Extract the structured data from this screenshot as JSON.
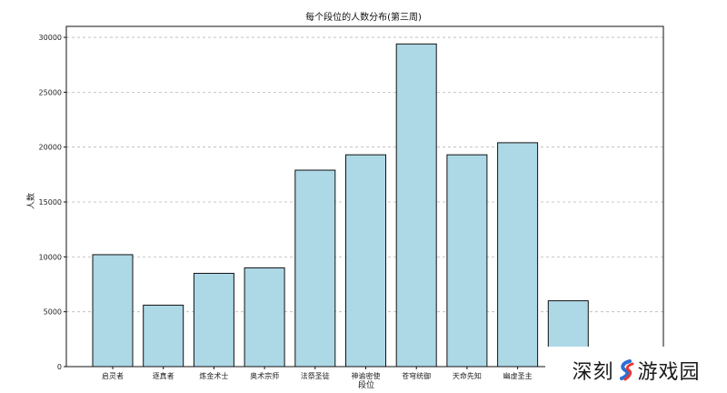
{
  "chart_data": {
    "type": "bar",
    "title": "每个段位的人数分布(第三周)",
    "xlabel": "段位",
    "ylabel": "人数",
    "categories": [
      "启灵者",
      "逐真者",
      "炼金术士",
      "奥术宗师",
      "法祭圣徒",
      "神谕密使",
      "苍穹统御",
      "天命先知",
      "幽虚圣主",
      ""
    ],
    "values": [
      10200,
      5600,
      8500,
      9000,
      17900,
      19300,
      29400,
      19300,
      20400,
      6000
    ],
    "ylim": [
      0,
      31000
    ],
    "yticks": [
      0,
      5000,
      10000,
      15000,
      20000,
      25000,
      30000
    ],
    "grid": "y-dashed",
    "bar_color": "#add8e6",
    "edge_color": "#111111"
  },
  "watermark": {
    "text_left": "深刻",
    "text_right": "游戏园",
    "logo_colors": [
      "#2b6fd6",
      "#e53935"
    ]
  }
}
